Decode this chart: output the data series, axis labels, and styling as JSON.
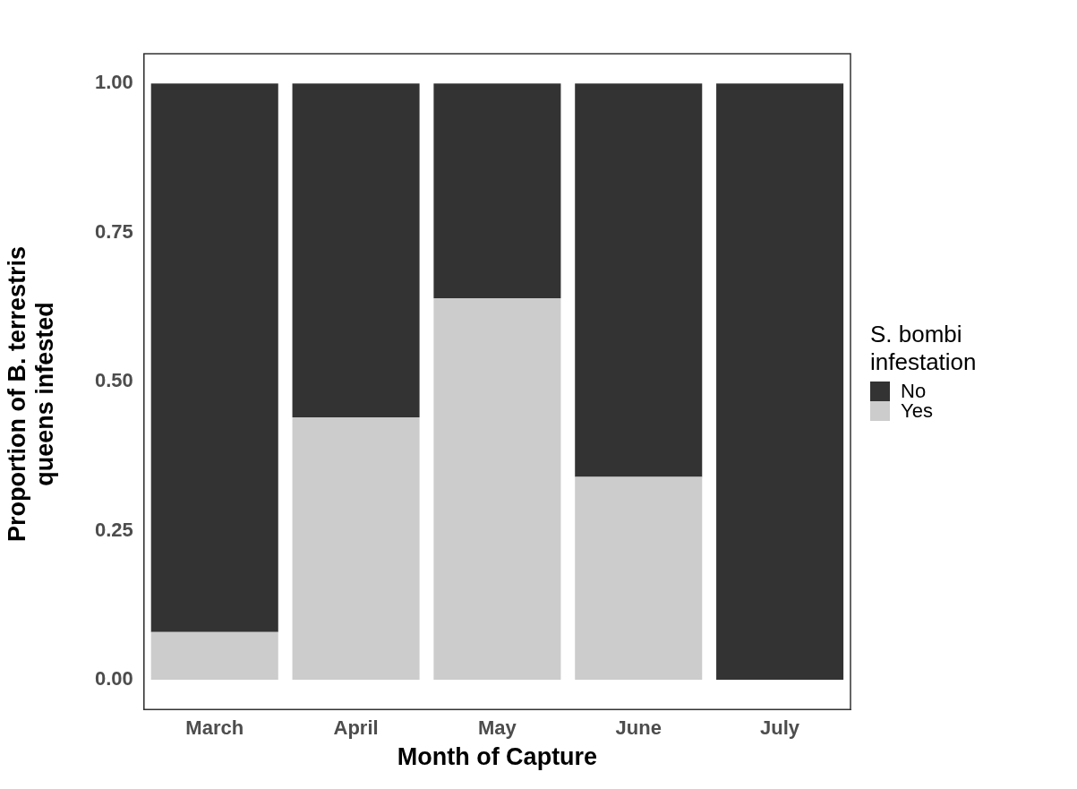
{
  "chart_data": {
    "type": "bar",
    "xlabel": "Month of Capture",
    "ylabel": "Proportion of B. terrestris queens infested",
    "legend_title": "S. bombi infestation",
    "categories": [
      "March",
      "April",
      "May",
      "June",
      "July"
    ],
    "series": [
      {
        "name": "Yes",
        "color": "#cccccc",
        "values": [
          0.08,
          0.44,
          0.64,
          0.34,
          0
        ]
      },
      {
        "name": "No",
        "color": "#333333",
        "values": [
          0.92,
          0.56,
          0.36,
          0.66,
          1
        ]
      }
    ],
    "stacked": true,
    "ylim": [
      -0.05,
      1.05
    ],
    "yticks": [
      {
        "value": 0,
        "label": "0.00"
      },
      {
        "value": 0.25,
        "label": "0.25"
      },
      {
        "value": 0.5,
        "label": "0.50"
      },
      {
        "value": 0.75,
        "label": "0.75"
      },
      {
        "value": 1,
        "label": "1.00"
      }
    ],
    "grid": false,
    "legend": "right"
  }
}
